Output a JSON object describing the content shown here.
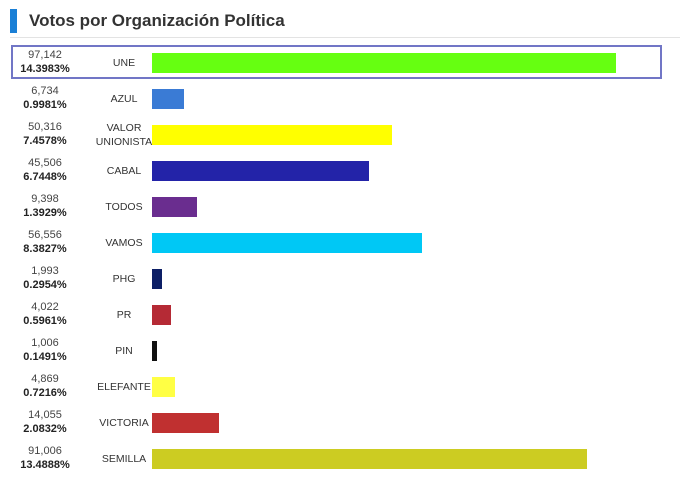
{
  "header": {
    "title": "Votos por Organización Política"
  },
  "colors": {
    "accent": "#1a7fd6",
    "selection_border": "#7176c6"
  },
  "selected_party": "UNE",
  "chart_data": {
    "type": "bar",
    "orientation": "horizontal",
    "title": "Votos por Organización Política",
    "grid": false,
    "categories": [
      "UNE",
      "AZUL",
      "VALOR UNIONISTA",
      "CABAL",
      "TODOS",
      "VAMOS",
      "PHG",
      "PR",
      "PIN",
      "ELEFANTE",
      "VICTORIA",
      "SEMILLA"
    ],
    "rows": [
      {
        "party": "UNE",
        "votes": "97,142",
        "percent": "14.3983%",
        "value": 97142,
        "color": "#66ff11"
      },
      {
        "party": "AZUL",
        "votes": "6,734",
        "percent": "0.9981%",
        "value": 6734,
        "color": "#3a7bd5"
      },
      {
        "party": "VALOR UNIONISTA",
        "votes": "50,316",
        "percent": "7.4578%",
        "value": 50316,
        "color": "#ffff00"
      },
      {
        "party": "CABAL",
        "votes": "45,506",
        "percent": "6.7448%",
        "value": 45506,
        "color": "#2323a8"
      },
      {
        "party": "TODOS",
        "votes": "9,398",
        "percent": "1.3929%",
        "value": 9398,
        "color": "#6a2d8f"
      },
      {
        "party": "VAMOS",
        "votes": "56,556",
        "percent": "8.3827%",
        "value": 56556,
        "color": "#00c8f5"
      },
      {
        "party": "PHG",
        "votes": "1,993",
        "percent": "0.2954%",
        "value": 1993,
        "color": "#0d1f66"
      },
      {
        "party": "PR",
        "votes": "4,022",
        "percent": "0.5961%",
        "value": 4022,
        "color": "#b52a35"
      },
      {
        "party": "PIN",
        "votes": "1,006",
        "percent": "0.1491%",
        "value": 1006,
        "color": "#111111"
      },
      {
        "party": "ELEFANTE",
        "votes": "4,869",
        "percent": "0.7216%",
        "value": 4869,
        "color": "#ffff44"
      },
      {
        "party": "VICTORIA",
        "votes": "14,055",
        "percent": "2.0832%",
        "value": 14055,
        "color": "#c03030"
      },
      {
        "party": "SEMILLA",
        "votes": "91,006",
        "percent": "13.4888%",
        "value": 91006,
        "color": "#cccc22"
      }
    ],
    "xlim": [
      0,
      97142
    ]
  }
}
